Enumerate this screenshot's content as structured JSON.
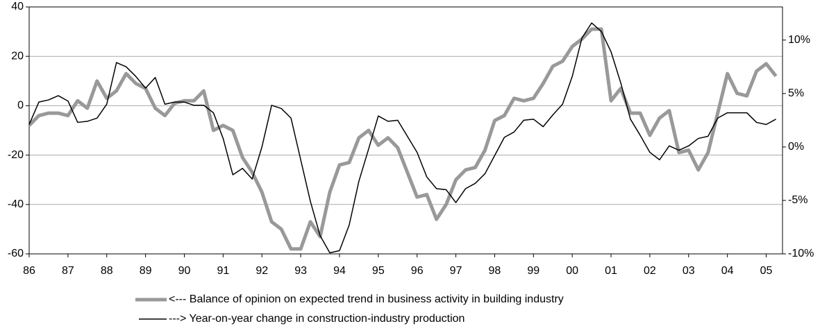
{
  "chart_data": {
    "type": "line",
    "x": [
      1986,
      1986.25,
      1986.5,
      1986.75,
      1987,
      1987.25,
      1987.5,
      1987.75,
      1988,
      1988.25,
      1988.5,
      1988.75,
      1989,
      1989.25,
      1989.5,
      1989.75,
      1990,
      1990.25,
      1990.5,
      1990.75,
      1991,
      1991.25,
      1991.5,
      1991.75,
      1992,
      1992.25,
      1992.5,
      1992.75,
      1993,
      1993.25,
      1993.5,
      1993.75,
      1994,
      1994.25,
      1994.5,
      1994.75,
      1995,
      1995.25,
      1995.5,
      1995.75,
      1996,
      1996.25,
      1996.5,
      1996.75,
      1997,
      1997.25,
      1997.5,
      1997.75,
      1998,
      1998.25,
      1998.5,
      1998.75,
      1999,
      1999.25,
      1999.5,
      1999.75,
      2000,
      2000.25,
      2000.5,
      2000.75,
      2001,
      2001.25,
      2001.5,
      2001.75,
      2002,
      2002.25,
      2002.5,
      2002.75,
      2003,
      2003.25,
      2003.5,
      2003.75,
      2004,
      2004.25,
      2004.5,
      2004.75,
      2005,
      2005.25
    ],
    "series": [
      {
        "name": "<--- Balance of opinion on expected trend in business activity in building industry",
        "color": "#999999",
        "width": 5,
        "values": [
          -8,
          -4,
          -3,
          -3,
          -4,
          2,
          -1,
          10,
          3,
          6,
          13,
          9,
          7,
          -1,
          -4,
          1,
          2,
          2,
          6,
          -10,
          -8,
          -10,
          -21,
          -27,
          -35,
          -47,
          -50,
          -58,
          -58,
          -47,
          -53,
          -35,
          -24,
          -23,
          -13,
          -10,
          -16,
          -13,
          -17,
          -27,
          -37,
          -36,
          -46,
          -40,
          -30,
          -26,
          -25,
          -18,
          -6,
          -4,
          3,
          2,
          3,
          9,
          16,
          18,
          24,
          27,
          31,
          31,
          2,
          7,
          -3,
          -3,
          -12,
          -5,
          -2,
          -19,
          -18,
          -26,
          -19,
          -3,
          13,
          5,
          4,
          14,
          17,
          12
        ]
      },
      {
        "name": "---> Year-on-year change in construction-industry production",
        "color": "#000000",
        "width": 1.5,
        "axis": "y2",
        "values": [
          2.1,
          4.2,
          4.4,
          4.8,
          4.3,
          2.3,
          2.4,
          2.7,
          4.0,
          7.9,
          7.5,
          6.6,
          5.5,
          6.5,
          4.0,
          4.2,
          4.2,
          3.9,
          3.9,
          3.2,
          0.8,
          -2.6,
          -2.0,
          -3.0,
          0,
          3.9,
          3.6,
          2.7,
          -1.2,
          -5.1,
          -8.3,
          -9.9,
          -9.7,
          -7.3,
          -3.2,
          -0.2,
          2.9,
          2.4,
          2.5,
          1.0,
          -0.5,
          -2.8,
          -3.9,
          -4.0,
          -5.2,
          -3.9,
          -3.4,
          -2.5,
          -0.8,
          0.9,
          1.4,
          2.5,
          2.6,
          1.9,
          3.0,
          4.0,
          6.6,
          10.2,
          11.6,
          10.8,
          8.9,
          6.0,
          2.6,
          1.1,
          -0.5,
          -1.2,
          0.1,
          -0.3,
          0.1,
          0.8,
          1.0,
          2.7,
          3.2,
          3.2,
          3.2,
          2.3,
          2.1,
          2.6
        ]
      }
    ],
    "xlim": [
      1986,
      2005.42
    ],
    "xticks": [
      {
        "value": 1986,
        "label": "86"
      },
      {
        "value": 1987,
        "label": "87"
      },
      {
        "value": 1988,
        "label": "88"
      },
      {
        "value": 1989,
        "label": "89"
      },
      {
        "value": 1990,
        "label": "90"
      },
      {
        "value": 1991,
        "label": "91"
      },
      {
        "value": 1992,
        "label": "92"
      },
      {
        "value": 1993,
        "label": "93"
      },
      {
        "value": 1994,
        "label": "94"
      },
      {
        "value": 1995,
        "label": "95"
      },
      {
        "value": 1996,
        "label": "96"
      },
      {
        "value": 1997,
        "label": "97"
      },
      {
        "value": 1998,
        "label": "98"
      },
      {
        "value": 1999,
        "label": "99"
      },
      {
        "value": 2000,
        "label": "00"
      },
      {
        "value": 2001,
        "label": "01"
      },
      {
        "value": 2002,
        "label": "02"
      },
      {
        "value": 2003,
        "label": "03"
      },
      {
        "value": 2004,
        "label": "04"
      },
      {
        "value": 2005,
        "label": "05"
      }
    ],
    "ylim": [
      -60,
      40
    ],
    "yticks": [
      -60,
      -40,
      -20,
      0,
      20,
      40
    ],
    "y2lim": [
      -10,
      13.1
    ],
    "y2ticks": [
      {
        "value": -10,
        "label": "-10%"
      },
      {
        "value": -5,
        "label": "-5%"
      },
      {
        "value": 0,
        "label": "0%"
      },
      {
        "value": 5,
        "label": "5%"
      },
      {
        "value": 10,
        "label": "10%"
      }
    ],
    "grid": true
  }
}
